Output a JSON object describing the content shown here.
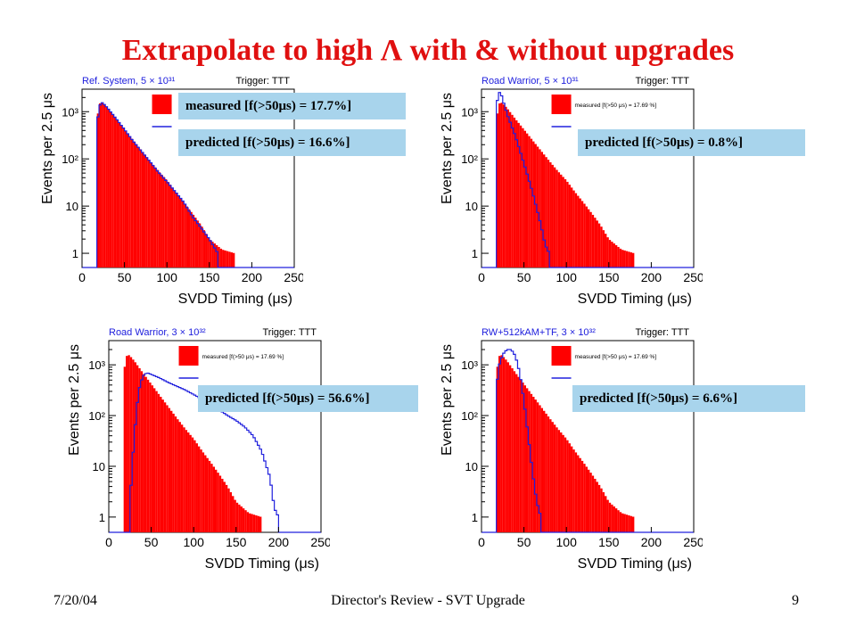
{
  "title": "Extrapolate to high Λ with & without upgrades",
  "footer": {
    "date": "7/20/04",
    "center": "Director's Review - SVT Upgrade",
    "page": "9"
  },
  "colors": {
    "title": "#e01010",
    "measured_fill": "#ff0000",
    "predicted_line": "#2020dd",
    "callout_bg": "#a8d4ec",
    "callout_text": "#000000"
  },
  "chart_data": [
    {
      "type": "bar",
      "panel_title": "Ref. System, 5 × 10³¹",
      "trigger": "Trigger: TTT",
      "xlabel": "SVDD Timing (μs)",
      "ylabel": "Events per 2.5 μs",
      "xlim": [
        0,
        250
      ],
      "ylim": [
        0.5,
        3000
      ],
      "yscale": "log",
      "xticks": [
        "0",
        "50",
        "100",
        "150",
        "200",
        "250"
      ],
      "yticks": [
        "1",
        "10",
        "10²",
        "10³"
      ],
      "legend_small_text": "",
      "callouts": [
        "measured [f(>50μs) = 17.7%]",
        "predicted [f(>50μs) = 16.6%]"
      ],
      "series": [
        {
          "name": "measured",
          "points": [
            [
              17.5,
              600
            ],
            [
              20,
              1400
            ],
            [
              22.5,
              1600
            ],
            [
              25,
              1500
            ],
            [
              30,
              1200
            ],
            [
              40,
              700
            ],
            [
              50,
              420
            ],
            [
              60,
              250
            ],
            [
              70,
              150
            ],
            [
              80,
              90
            ],
            [
              90,
              55
            ],
            [
              100,
              35
            ],
            [
              110,
              20
            ],
            [
              120,
              12
            ],
            [
              130,
              7
            ],
            [
              140,
              4
            ],
            [
              150,
              2
            ],
            [
              165,
              1.2
            ],
            [
              180,
              1
            ],
            [
              185,
              0
            ]
          ]
        },
        {
          "name": "predicted",
          "points": [
            [
              17.5,
              500
            ],
            [
              20,
              1200
            ],
            [
              22.5,
              1600
            ],
            [
              25,
              1500
            ],
            [
              30,
              1200
            ],
            [
              40,
              720
            ],
            [
              50,
              420
            ],
            [
              60,
              240
            ],
            [
              70,
              145
            ],
            [
              80,
              88
            ],
            [
              90,
              52
            ],
            [
              100,
              33
            ],
            [
              110,
              20
            ],
            [
              120,
              12
            ],
            [
              130,
              6
            ],
            [
              140,
              3.5
            ],
            [
              150,
              2
            ],
            [
              160,
              1
            ]
          ]
        }
      ]
    },
    {
      "type": "bar",
      "panel_title": "Road Warrior, 5 × 10³¹",
      "trigger": "Trigger: TTT",
      "xlabel": "SVDD Timing (μs)",
      "ylabel": "Events per 2.5 μs",
      "xlim": [
        0,
        250
      ],
      "ylim": [
        0.5,
        3000
      ],
      "yscale": "log",
      "xticks": [
        "0",
        "50",
        "100",
        "150",
        "200",
        "250"
      ],
      "yticks": [
        "1",
        "10",
        "10²",
        "10³"
      ],
      "legend_small_text": "measured [f(>50 μs) = 17.69 %]",
      "callouts": [
        "predicted [f(>50μs) = 0.8%]"
      ],
      "series": [
        {
          "name": "measured",
          "points": [
            [
              17.5,
              600
            ],
            [
              20,
              1400
            ],
            [
              22.5,
              1600
            ],
            [
              25,
              1500
            ],
            [
              30,
              1200
            ],
            [
              40,
              700
            ],
            [
              50,
              420
            ],
            [
              60,
              250
            ],
            [
              70,
              150
            ],
            [
              80,
              90
            ],
            [
              90,
              55
            ],
            [
              100,
              35
            ],
            [
              110,
              20
            ],
            [
              120,
              12
            ],
            [
              130,
              7
            ],
            [
              140,
              4
            ],
            [
              150,
              2
            ],
            [
              165,
              1.2
            ],
            [
              180,
              1
            ],
            [
              185,
              0
            ]
          ]
        },
        {
          "name": "predicted",
          "points": [
            [
              17.5,
              1200
            ],
            [
              20,
              2500
            ],
            [
              22.5,
              2600
            ],
            [
              25,
              1800
            ],
            [
              30,
              900
            ],
            [
              40,
              300
            ],
            [
              50,
              80
            ],
            [
              60,
              20
            ],
            [
              70,
              4
            ],
            [
              75,
              1.5
            ],
            [
              80,
              1
            ]
          ]
        }
      ]
    },
    {
      "type": "bar",
      "panel_title": "Road Warrior, 3 × 10³²",
      "trigger": "Trigger: TTT",
      "xlabel": "SVDD Timing (μs)",
      "ylabel": "Events per 2.5 μs",
      "xlim": [
        0,
        250
      ],
      "ylim": [
        0.5,
        3000
      ],
      "yscale": "log",
      "xticks": [
        "0",
        "50",
        "100",
        "150",
        "200",
        "250"
      ],
      "yticks": [
        "1",
        "10",
        "10²",
        "10³"
      ],
      "legend_small_text": "measured [f(>50 μs) = 17.69 %]",
      "callouts": [
        "predicted [f(>50μs) = 56.6%]"
      ],
      "series": [
        {
          "name": "measured",
          "points": [
            [
              17.5,
              600
            ],
            [
              20,
              1400
            ],
            [
              22.5,
              1600
            ],
            [
              25,
              1500
            ],
            [
              30,
              1200
            ],
            [
              40,
              700
            ],
            [
              50,
              420
            ],
            [
              60,
              250
            ],
            [
              70,
              150
            ],
            [
              80,
              90
            ],
            [
              90,
              55
            ],
            [
              100,
              35
            ],
            [
              110,
              20
            ],
            [
              120,
              12
            ],
            [
              130,
              7
            ],
            [
              140,
              4
            ],
            [
              150,
              2
            ],
            [
              165,
              1.2
            ],
            [
              180,
              1
            ],
            [
              185,
              0
            ]
          ]
        },
        {
          "name": "predicted",
          "points": [
            [
              25,
              2
            ],
            [
              30,
              40
            ],
            [
              35,
              300
            ],
            [
              40,
              600
            ],
            [
              45,
              700
            ],
            [
              50,
              650
            ],
            [
              60,
              550
            ],
            [
              70,
              450
            ],
            [
              80,
              380
            ],
            [
              90,
              320
            ],
            [
              100,
              260
            ],
            [
              110,
              210
            ],
            [
              120,
              170
            ],
            [
              130,
              130
            ],
            [
              140,
              100
            ],
            [
              150,
              80
            ],
            [
              160,
              60
            ],
            [
              170,
              40
            ],
            [
              180,
              20
            ],
            [
              190,
              6
            ],
            [
              195,
              1.5
            ],
            [
              200,
              1
            ]
          ]
        }
      ]
    },
    {
      "type": "bar",
      "panel_title": "RW+512kAM+TF, 3 × 10³²",
      "trigger": "Trigger: TTT",
      "xlabel": "SVDD Timing (μs)",
      "ylabel": "Events per 2.5 μs",
      "xlim": [
        0,
        250
      ],
      "ylim": [
        0.5,
        3000
      ],
      "yscale": "log",
      "xticks": [
        "0",
        "50",
        "100",
        "150",
        "200",
        "250"
      ],
      "yticks": [
        "1",
        "10",
        "10²",
        "10³"
      ],
      "legend_small_text": "measured [f(>50 μs) = 17.69 %]",
      "callouts": [
        "predicted [f(>50μs) = 6.6%]"
      ],
      "series": [
        {
          "name": "measured",
          "points": [
            [
              17.5,
              600
            ],
            [
              20,
              1400
            ],
            [
              22.5,
              1600
            ],
            [
              25,
              1500
            ],
            [
              30,
              1200
            ],
            [
              40,
              700
            ],
            [
              50,
              420
            ],
            [
              60,
              250
            ],
            [
              70,
              150
            ],
            [
              80,
              90
            ],
            [
              90,
              55
            ],
            [
              100,
              35
            ],
            [
              110,
              20
            ],
            [
              120,
              12
            ],
            [
              130,
              7
            ],
            [
              140,
              4
            ],
            [
              150,
              2
            ],
            [
              165,
              1.2
            ],
            [
              180,
              1
            ],
            [
              185,
              0
            ]
          ]
        },
        {
          "name": "predicted",
          "points": [
            [
              17.5,
              300
            ],
            [
              20,
              900
            ],
            [
              25,
              1600
            ],
            [
              30,
              2000
            ],
            [
              35,
              2000
            ],
            [
              40,
              1500
            ],
            [
              45,
              700
            ],
            [
              50,
              200
            ],
            [
              55,
              40
            ],
            [
              60,
              8
            ],
            [
              65,
              2
            ],
            [
              70,
              1
            ]
          ]
        }
      ]
    }
  ]
}
